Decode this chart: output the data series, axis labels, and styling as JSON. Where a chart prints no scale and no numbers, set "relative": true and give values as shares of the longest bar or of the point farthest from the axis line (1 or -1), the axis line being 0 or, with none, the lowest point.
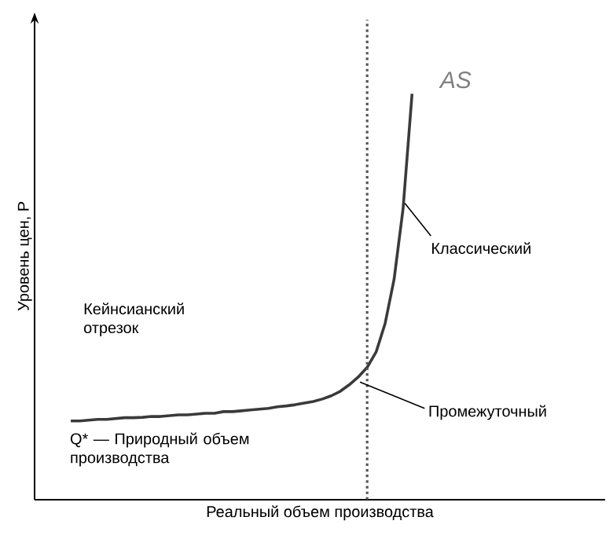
{
  "chart_data": {
    "type": "line",
    "relative": true,
    "marker": "none",
    "line_style": "solid",
    "xlabel": "Реальный объем производства",
    "ylabel": "Уровень цен, Р",
    "categories": [
      null,
      null,
      null,
      null,
      null,
      null,
      null,
      null,
      null,
      null,
      null,
      null,
      null,
      null,
      null,
      null,
      null,
      null,
      null,
      null,
      null,
      null,
      null,
      null,
      null,
      null,
      null,
      null,
      null,
      null,
      null,
      null,
      null,
      null,
      null,
      null,
      null,
      null,
      null
    ],
    "series": [
      {
        "name": "AS",
        "color": "#3a3a3a",
        "values": [
          0.194,
          0.194,
          0.196,
          0.198,
          0.198,
          0.2,
          0.202,
          0.202,
          0.203,
          0.205,
          0.205,
          0.207,
          0.209,
          0.209,
          0.211,
          0.213,
          0.213,
          0.217,
          0.217,
          0.219,
          0.221,
          0.223,
          0.225,
          0.229,
          0.231,
          0.234,
          0.238,
          0.242,
          0.248,
          0.256,
          0.267,
          0.283,
          0.302,
          0.326,
          0.364,
          0.434,
          0.543,
          0.717,
          1
        ]
      }
    ],
    "annotations": [
      "Классический",
      "Кейнсианский отрезок",
      "Промежуточный",
      "Q* — Природный объем производства"
    ]
  }
}
